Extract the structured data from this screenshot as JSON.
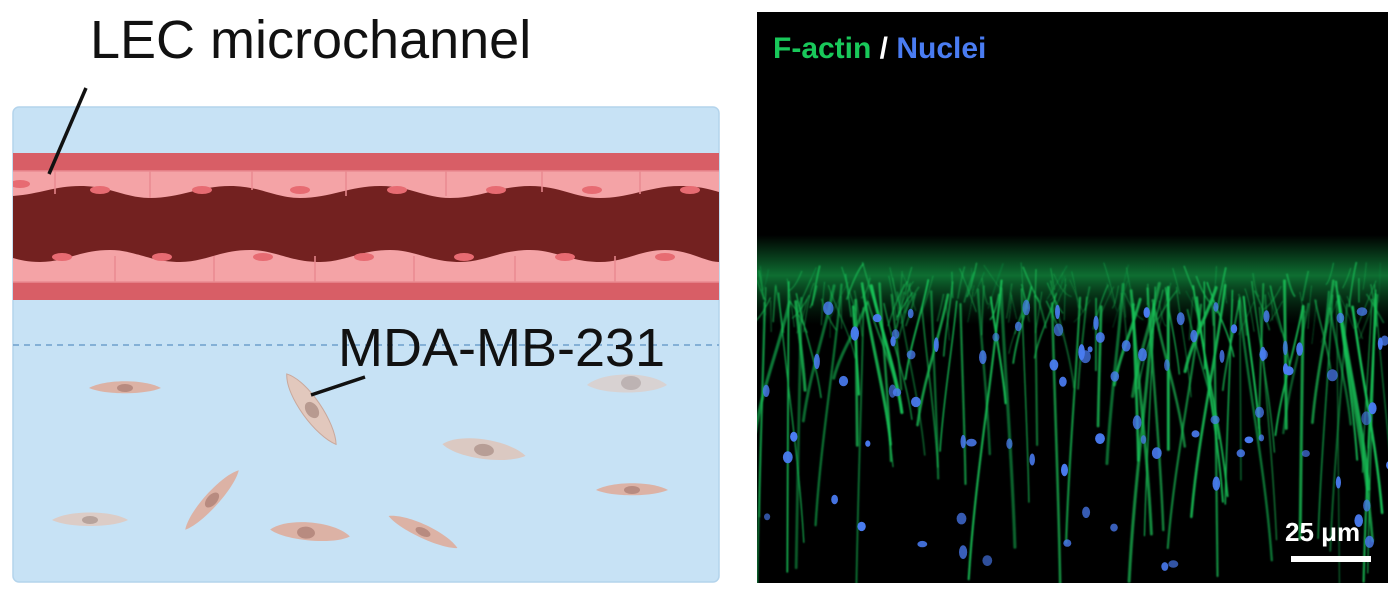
{
  "schematic": {
    "channel_label": "LEC microchannel",
    "cell_label": "MDA-MB-231",
    "colors": {
      "gel": "#c7e2f5",
      "wall": "#d85e66",
      "endothelium": "#f4a3a6",
      "endothelium_nucleus": "#e76b72",
      "lumen": "#732120",
      "tumor_cell_warm": "#dcb2a5",
      "tumor_cell_grey": "#d8d2d2"
    }
  },
  "micrograph": {
    "channel_1": "F-actin",
    "separator": " / ",
    "channel_2": "Nuclei",
    "scale_bar": "25 μm",
    "colors": {
      "f_actin": "#19c85a",
      "nuclei": "#4a7cf2",
      "background": "#000000"
    }
  }
}
